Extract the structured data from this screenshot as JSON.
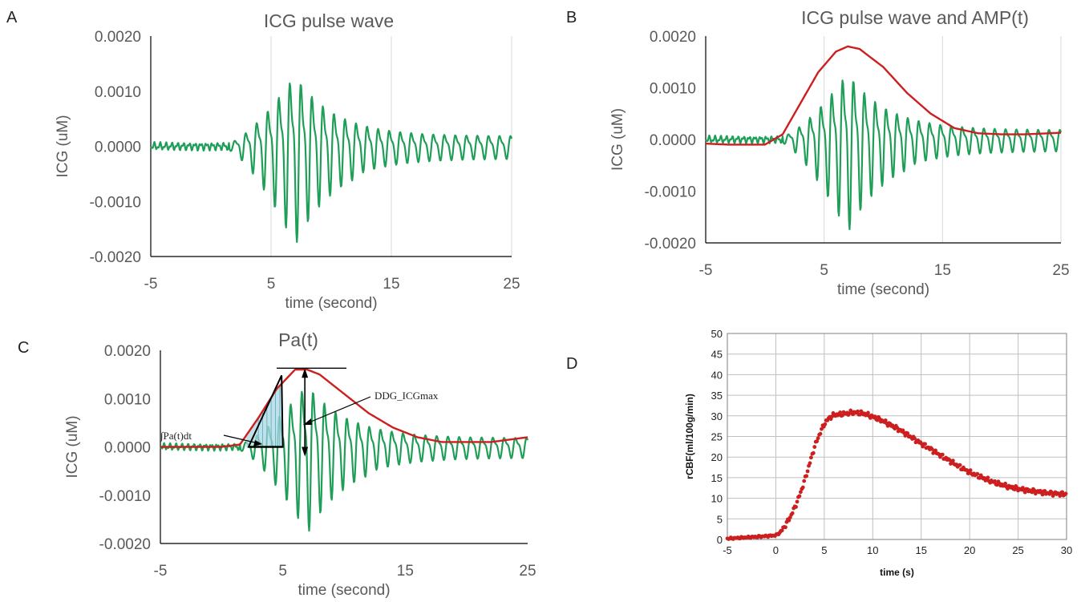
{
  "colors": {
    "green": "#1f9e57",
    "red": "#cc1f1f",
    "grid": "#d9d9d9",
    "axis": "#000000",
    "fill": "#a9d8e3"
  },
  "chart_data": [
    {
      "panel": "A",
      "type": "line",
      "title": "ICG pulse wave",
      "xlabel": "time (second)",
      "ylabel": "ICG (uM)",
      "xlim": [
        -5,
        25
      ],
      "ylim": [
        -0.002,
        0.002
      ],
      "xticks": [
        "-5",
        "5",
        "15",
        "25"
      ],
      "yticks": [
        "0.0020",
        "0.0010",
        "0.0000",
        "-0.0010",
        "-0.0020"
      ],
      "grid": "vertical",
      "series": [
        {
          "values_description_free": true,
          "color": "green",
          "envelope": {
            "start": 1.5,
            "peak_time": 7.0,
            "peak": 0.0017,
            "baseline_noise": 9e-05,
            "tail": 0.00022
          }
        }
      ]
    },
    {
      "panel": "B",
      "type": "line",
      "title": "ICG pulse wave and AMP(t)",
      "xlabel": "time (second)",
      "ylabel": "ICG (uM)",
      "xlim": [
        -5,
        25
      ],
      "ylim": [
        -0.002,
        0.002
      ],
      "xticks": [
        "-5",
        "5",
        "15",
        "25"
      ],
      "yticks": [
        "0.0020",
        "0.0010",
        "0.0000",
        "-0.0010",
        "-0.0020"
      ],
      "grid": "vertical",
      "amp_series": {
        "color": "red",
        "x": [
          -5,
          -3,
          0,
          1.5,
          3,
          4.5,
          6,
          7,
          8,
          10,
          12,
          14,
          16,
          18,
          20,
          22,
          25
        ],
        "y": [
          -8e-05,
          -0.0001,
          -0.0001,
          0.0001,
          0.0007,
          0.0013,
          0.0017,
          0.0018,
          0.00175,
          0.0014,
          0.0009,
          0.0005,
          0.00022,
          0.00012,
          0.0001,
          0.0001,
          0.00013
        ]
      }
    },
    {
      "panel": "C",
      "type": "line",
      "title": "Pa(t)",
      "xlabel": "time (second)",
      "ylabel": "ICG (uM)",
      "xlim": [
        -5,
        25
      ],
      "ylim": [
        -0.002,
        0.002
      ],
      "xticks": [
        "-5",
        "5",
        "15",
        "25"
      ],
      "yticks": [
        "0.0020",
        "0.0010",
        "0.0000",
        "-0.0010",
        "-0.0020"
      ],
      "grid": "none",
      "annotations": [
        "DDG_ICGmax",
        "∫Pa(t)dt"
      ],
      "pa_series": {
        "color": "red",
        "x": [
          -5,
          0,
          1.5,
          3,
          4.5,
          6,
          7,
          8,
          10,
          12,
          14,
          16,
          18,
          20,
          22,
          25
        ],
        "y": [
          0,
          0,
          5e-05,
          0.0006,
          0.0012,
          0.0016,
          0.0016,
          0.0015,
          0.0011,
          0.0007,
          0.0004,
          0.0002,
          0.0001,
          0.0001,
          0.0001,
          0.0002
        ]
      }
    },
    {
      "panel": "D",
      "type": "scatter",
      "xlabel": "time (s)",
      "ylabel": "rCBF(ml/100g/min)",
      "xlim": [
        -5,
        30
      ],
      "ylim": [
        0,
        50
      ],
      "xticks": [
        "-5",
        "0",
        "5",
        "10",
        "15",
        "20",
        "25",
        "30"
      ],
      "yticks": [
        "0",
        "5",
        "10",
        "15",
        "20",
        "25",
        "30",
        "35",
        "40",
        "45",
        "50"
      ],
      "grid": "both",
      "series": {
        "color": "red",
        "x": [
          -5,
          -3,
          -1,
          0,
          0.5,
          1,
          1.5,
          2,
          2.5,
          3,
          3.5,
          4,
          4.5,
          5,
          5.5,
          6,
          7,
          8,
          9,
          10,
          11,
          12,
          13,
          14,
          15,
          16,
          17,
          18,
          19,
          20,
          21,
          22,
          23,
          24,
          25,
          26,
          27,
          28,
          29,
          30
        ],
        "y": [
          0.2,
          0.5,
          0.8,
          1.0,
          1.8,
          3.5,
          5.5,
          8.0,
          11.0,
          14.5,
          18.5,
          22.5,
          25.5,
          28.0,
          29.5,
          30.2,
          30.5,
          30.8,
          30.6,
          29.8,
          28.8,
          27.6,
          26.3,
          24.8,
          23.3,
          21.9,
          20.4,
          19.0,
          17.6,
          16.3,
          15.3,
          14.3,
          13.5,
          12.8,
          12.3,
          11.9,
          11.6,
          11.3,
          11.1,
          11.0
        ]
      }
    }
  ]
}
